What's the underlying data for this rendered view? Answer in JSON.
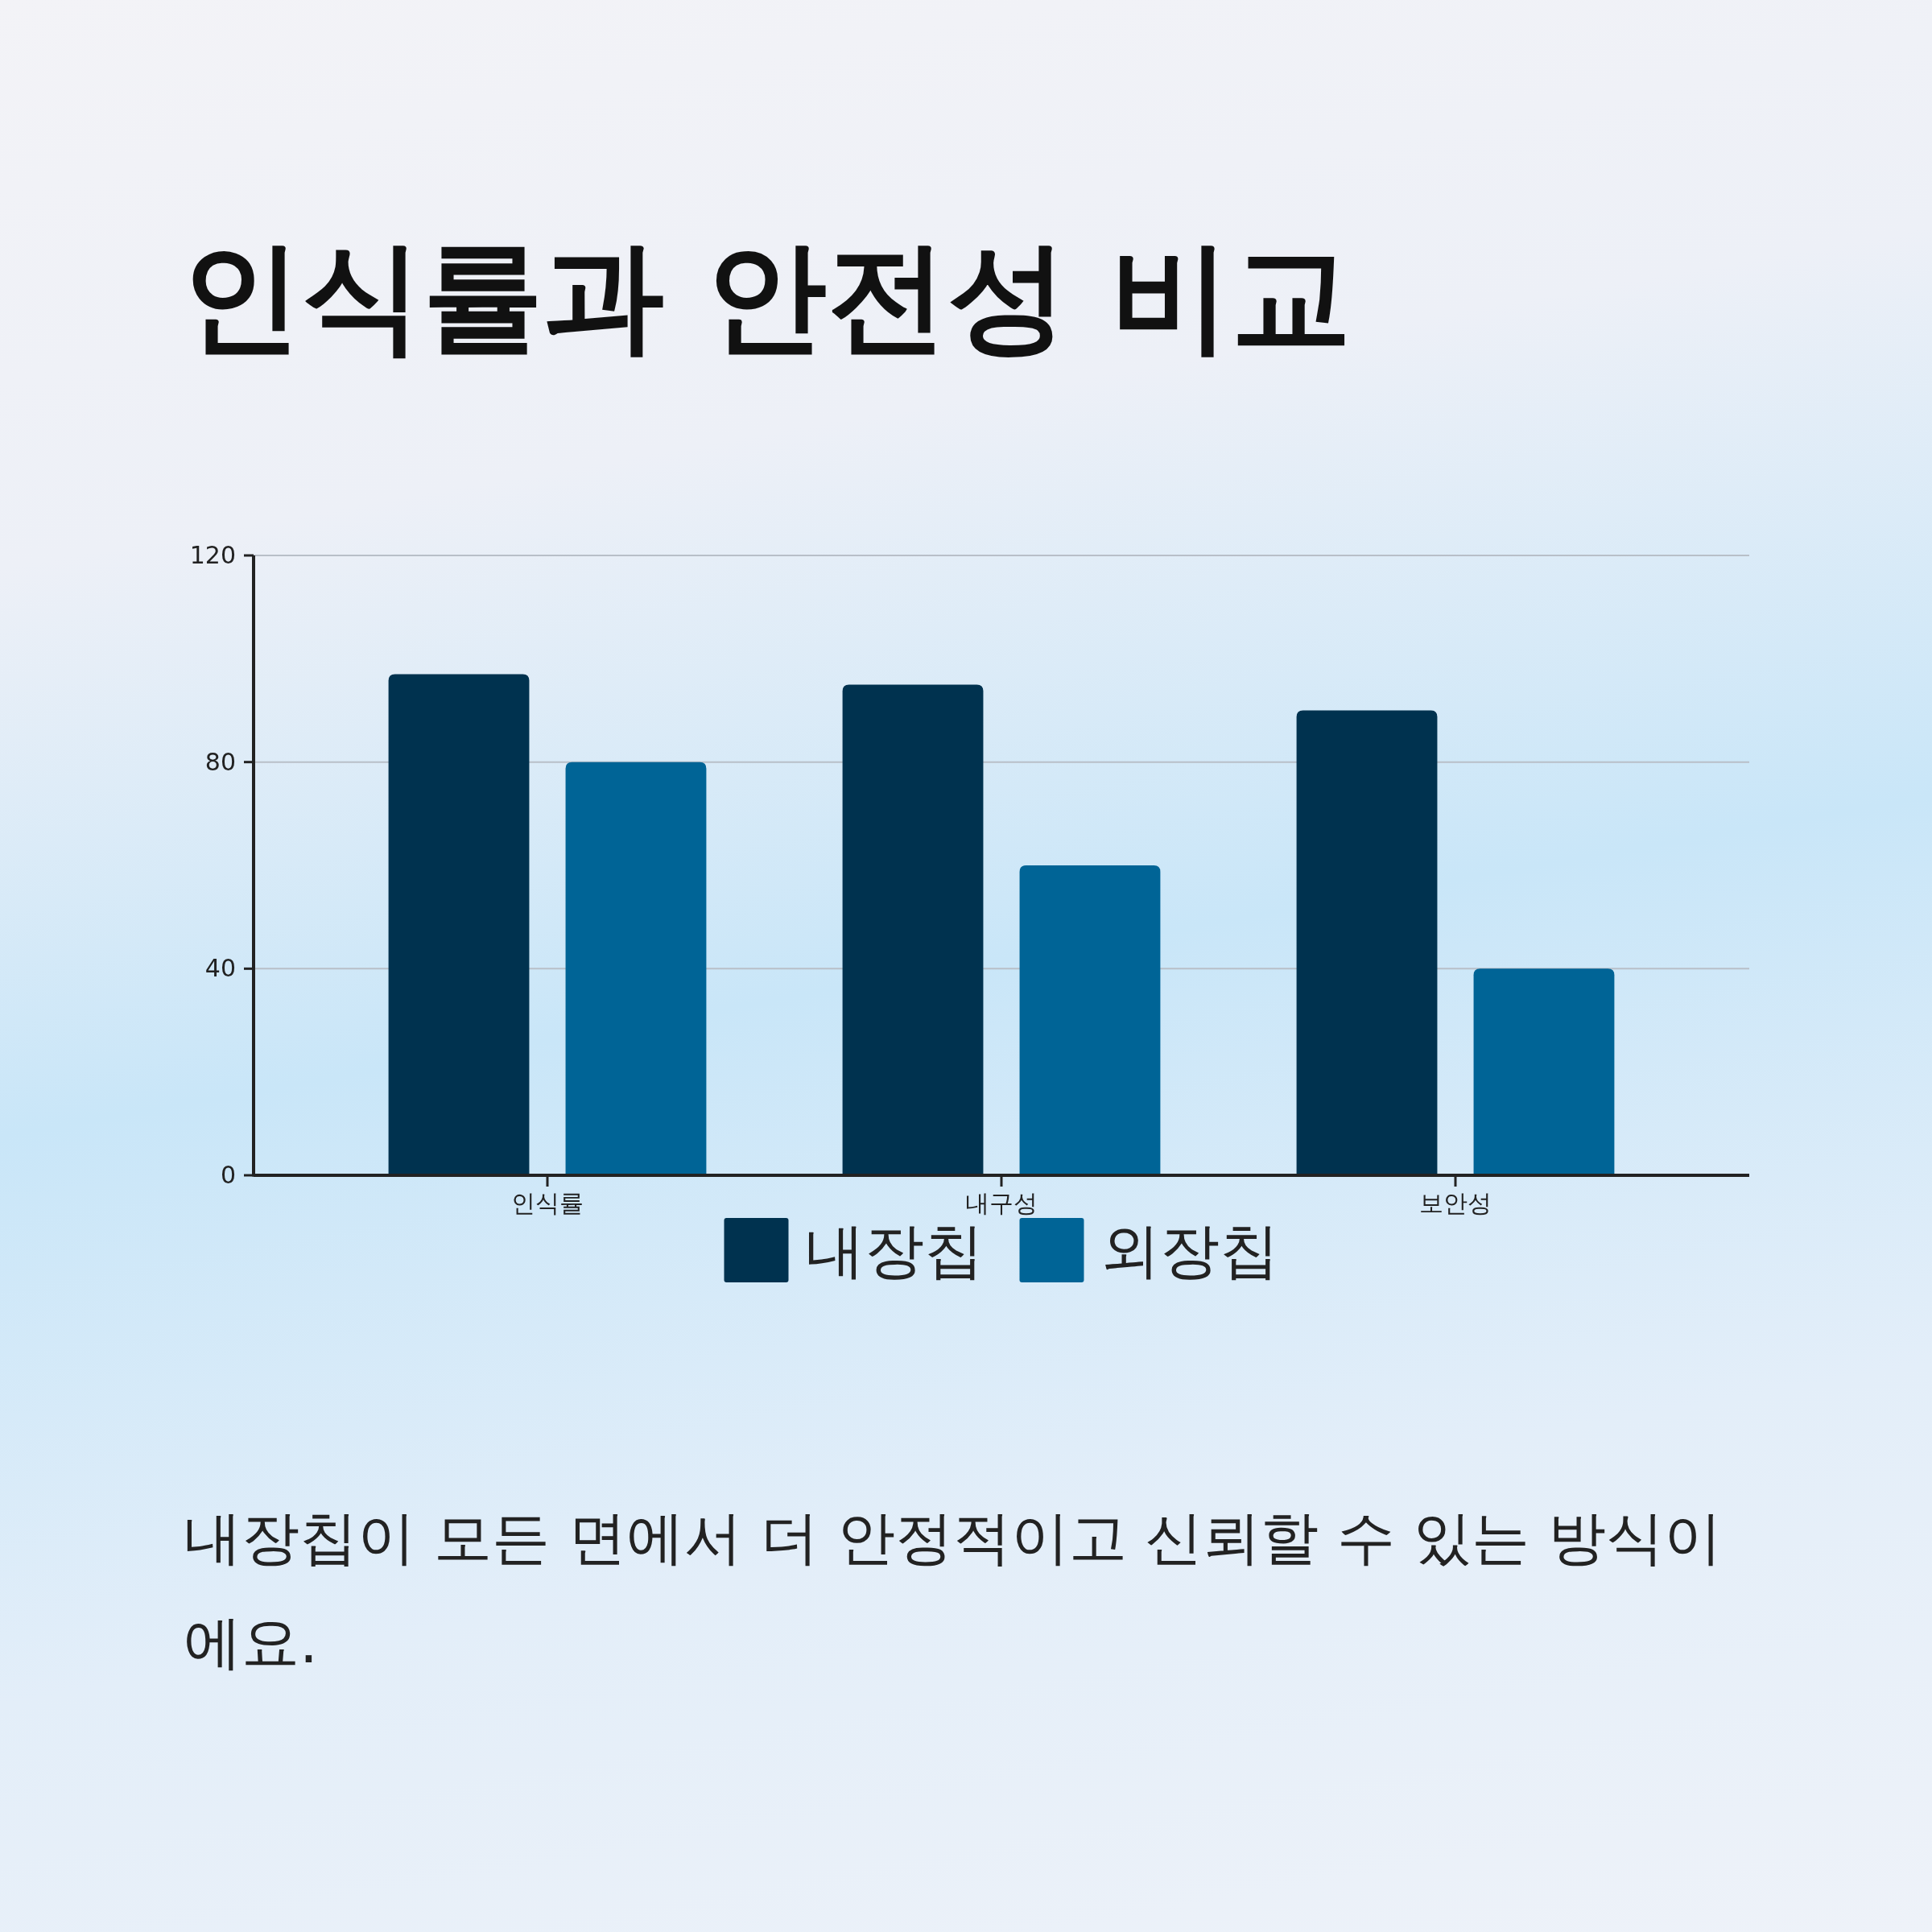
{
  "chart_data": {
    "type": "bar",
    "title": "인식률과 안전성 비교",
    "categories": [
      "인식률",
      "내구성",
      "보안성"
    ],
    "series": [
      {
        "name": "내장칩",
        "color": "#00324f",
        "values": [
          97,
          95,
          90
        ]
      },
      {
        "name": "외장칩",
        "color": "#006496",
        "values": [
          80,
          60,
          40
        ]
      }
    ],
    "ylim": [
      0,
      120
    ],
    "yticks": [
      0,
      40,
      80,
      120
    ],
    "grid": "y",
    "legend": "bottom",
    "annotations": [
      "내장칩이 모든 면에서 더 안정적이고 신뢰할 수 있는 방식이에요."
    ]
  }
}
